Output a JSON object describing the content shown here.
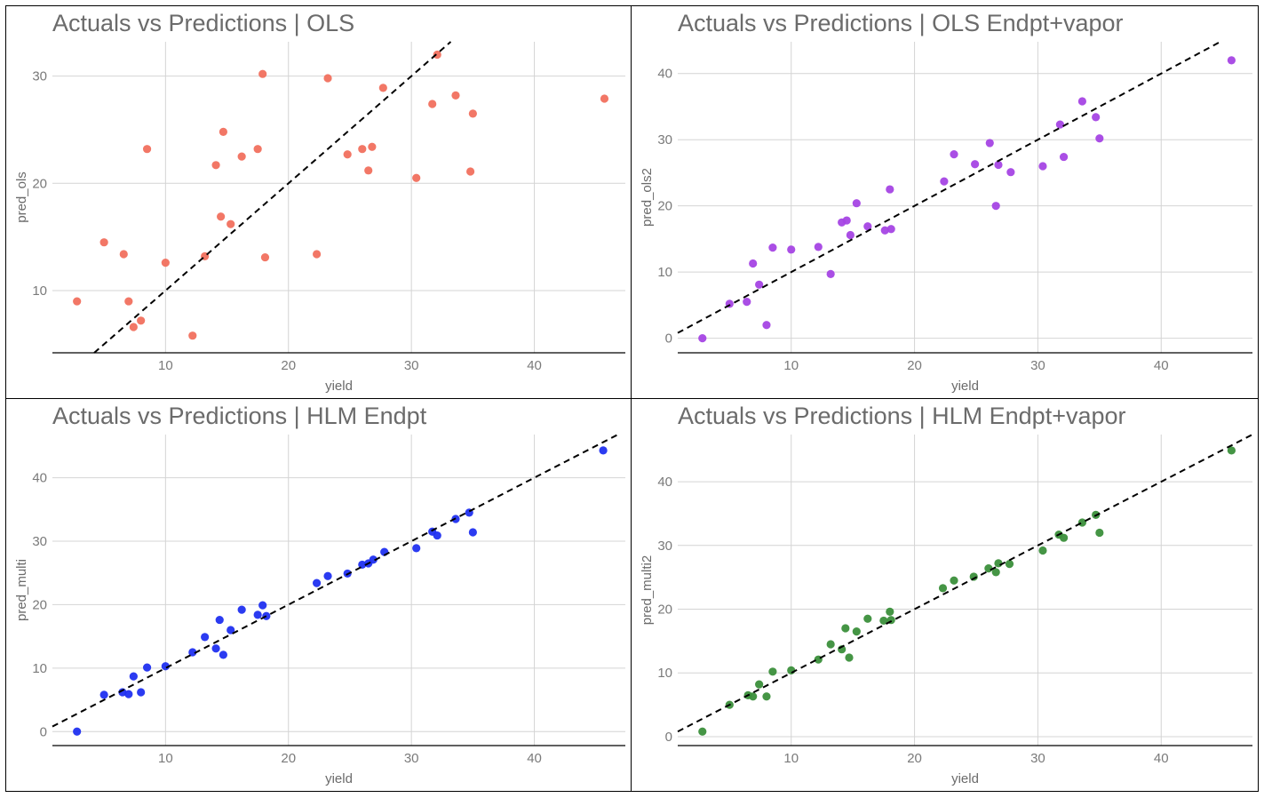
{
  "chart_data": [
    {
      "type": "scatter",
      "title": "Actuals vs Predictions | OLS",
      "xlabel": "yield",
      "ylabel": "pred_ols",
      "xlim": [
        0.8,
        47.4
      ],
      "ylim": [
        4.2,
        33.2
      ],
      "xticks": [
        10,
        20,
        30,
        40
      ],
      "yticks": [
        10,
        20,
        30
      ],
      "grid": true,
      "reference_line": "y = x",
      "point_color": "#f1705e",
      "series": [
        {
          "x": [
            2.8,
            5.0,
            6.6,
            7.0,
            7.4,
            8.0,
            8.5,
            10.0,
            12.2,
            13.2,
            14.1,
            14.5,
            14.7,
            15.3,
            16.2,
            17.5,
            17.9,
            18.1,
            22.3,
            23.2,
            24.8,
            26.0,
            26.5,
            26.8,
            27.7,
            30.4,
            31.7,
            32.1,
            33.6,
            34.8,
            35.0,
            45.7
          ],
          "y": [
            9.0,
            14.5,
            13.4,
            9.0,
            6.6,
            7.2,
            23.2,
            12.6,
            5.8,
            13.2,
            21.7,
            16.9,
            24.8,
            16.2,
            22.5,
            23.2,
            30.2,
            13.1,
            13.4,
            29.8,
            22.7,
            23.2,
            21.2,
            23.4,
            28.9,
            20.5,
            27.4,
            32.0,
            28.2,
            21.1,
            26.5,
            27.9
          ]
        }
      ]
    },
    {
      "type": "scatter",
      "title": "Actuals vs Predictions | OLS Endpt+vapor",
      "xlabel": "yield",
      "ylabel": "pred_ols2",
      "xlim": [
        0.8,
        47.4
      ],
      "ylim": [
        -2.2,
        44.8
      ],
      "xticks": [
        10,
        20,
        30,
        40
      ],
      "yticks": [
        0,
        10,
        20,
        30,
        40
      ],
      "grid": true,
      "reference_line": "y = x",
      "point_color": "#a544e4",
      "series": [
        {
          "x": [
            2.8,
            5.0,
            6.4,
            6.9,
            7.4,
            8.0,
            8.5,
            10.0,
            12.2,
            13.2,
            14.1,
            14.5,
            14.8,
            15.3,
            16.2,
            17.6,
            18.1,
            18.0,
            22.4,
            23.2,
            24.9,
            26.1,
            26.6,
            26.8,
            27.8,
            30.4,
            31.8,
            32.1,
            33.6,
            34.7,
            35.0,
            45.7
          ],
          "y": [
            0.0,
            5.2,
            5.5,
            11.3,
            8.1,
            2.0,
            13.7,
            13.4,
            13.8,
            9.7,
            17.5,
            17.8,
            15.6,
            20.4,
            16.9,
            16.3,
            16.5,
            22.5,
            23.7,
            27.8,
            26.3,
            29.5,
            20.0,
            26.2,
            25.1,
            26.0,
            32.3,
            27.4,
            35.8,
            33.4,
            30.2,
            42.0
          ]
        }
      ]
    },
    {
      "type": "scatter",
      "title": "Actuals vs Predictions | HLM Endpt",
      "xlabel": "yield",
      "ylabel": "pred_multi",
      "xlim": [
        0.8,
        47.4
      ],
      "ylim": [
        -2.2,
        46.8
      ],
      "xticks": [
        10,
        20,
        30,
        40
      ],
      "yticks": [
        0,
        10,
        20,
        30,
        40
      ],
      "grid": true,
      "reference_line": "y = x",
      "point_color": "#2030f0",
      "series": [
        {
          "x": [
            2.8,
            5.0,
            6.5,
            7.0,
            7.4,
            8.0,
            8.5,
            10.0,
            12.2,
            13.2,
            14.1,
            14.4,
            14.7,
            15.3,
            16.2,
            17.5,
            17.9,
            18.2,
            22.3,
            23.2,
            24.8,
            26.0,
            26.5,
            26.9,
            27.8,
            30.4,
            31.7,
            32.1,
            33.6,
            34.7,
            35.0,
            45.6
          ],
          "y": [
            0.0,
            5.8,
            6.2,
            5.9,
            8.7,
            6.2,
            10.1,
            10.3,
            12.5,
            14.9,
            13.1,
            17.6,
            12.1,
            16.0,
            19.2,
            18.4,
            19.9,
            18.2,
            23.4,
            24.5,
            24.9,
            26.3,
            26.5,
            27.1,
            28.3,
            28.9,
            31.5,
            30.9,
            33.5,
            34.5,
            31.4,
            44.3
          ]
        }
      ]
    },
    {
      "type": "scatter",
      "title": "Actuals vs Predictions | HLM Endpt+vapor",
      "xlabel": "yield",
      "ylabel": "pred_multi2",
      "xlim": [
        0.8,
        47.4
      ],
      "ylim": [
        -1.4,
        47.4
      ],
      "xticks": [
        10,
        20,
        30,
        40
      ],
      "yticks": [
        0,
        10,
        20,
        30,
        40
      ],
      "grid": true,
      "reference_line": "y = x",
      "point_color": "#3b8f3b",
      "series": [
        {
          "x": [
            2.8,
            5.0,
            6.5,
            6.9,
            7.4,
            8.0,
            8.5,
            10.0,
            12.2,
            13.2,
            14.1,
            14.4,
            14.7,
            15.3,
            16.2,
            17.5,
            18.0,
            18.1,
            22.3,
            23.2,
            24.8,
            26.0,
            26.6,
            26.8,
            27.7,
            30.4,
            31.7,
            32.1,
            33.6,
            34.7,
            35.0,
            45.7
          ],
          "y": [
            0.8,
            5.0,
            6.5,
            6.3,
            8.2,
            6.3,
            10.2,
            10.4,
            12.1,
            14.5,
            13.7,
            17.0,
            12.4,
            16.5,
            18.5,
            18.2,
            19.6,
            18.3,
            23.3,
            24.5,
            25.1,
            26.4,
            25.8,
            27.2,
            27.1,
            29.2,
            31.7,
            31.2,
            33.6,
            34.8,
            32.0,
            44.9
          ]
        }
      ]
    }
  ]
}
